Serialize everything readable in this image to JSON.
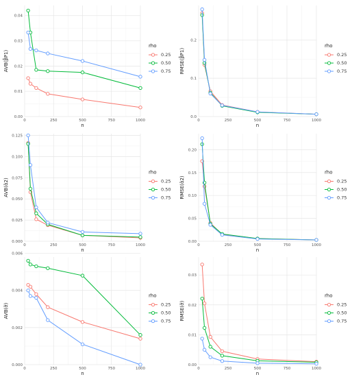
{
  "chart_data": [
    {
      "type": "line",
      "xlabel": "n",
      "ylabel": "AVB(β̂P1)",
      "x": [
        30,
        50,
        100,
        200,
        500,
        1000
      ],
      "xlim": [
        0,
        1000
      ],
      "ylim": [
        0,
        0.044
      ],
      "yticks": [
        "0.00",
        "0.01",
        "0.02",
        "0.03",
        "0.04"
      ],
      "ytick_values": [
        0,
        0.01,
        0.02,
        0.03,
        0.04
      ],
      "xticks": [
        "0",
        "250",
        "500",
        "750",
        "1000"
      ],
      "xtick_values": [
        0,
        250,
        500,
        750,
        1000
      ],
      "legend_title": "rho",
      "legend_position": "right",
      "grid": true,
      "series": [
        {
          "name": "0.25",
          "color": "#F8766D",
          "values": [
            0.0152,
            0.013,
            0.0113,
            0.009,
            0.0068,
            0.0036
          ]
        },
        {
          "name": "0.50",
          "color": "#00BA38",
          "values": [
            0.042,
            0.0333,
            0.0185,
            0.018,
            0.0175,
            0.0113
          ]
        },
        {
          "name": "0.75",
          "color": "#619CFF",
          "values": [
            0.0333,
            0.0268,
            0.0262,
            0.025,
            0.022,
            0.0158
          ]
        }
      ]
    },
    {
      "type": "line",
      "xlabel": "n",
      "ylabel": "RMSE(β̂P1)",
      "x": [
        30,
        50,
        100,
        200,
        500,
        1000
      ],
      "xlim": [
        0,
        1000
      ],
      "ylim": [
        0,
        0.29
      ],
      "yticks": [
        "0.0",
        "0.1",
        "0.2"
      ],
      "ytick_values": [
        0,
        0.1,
        0.2
      ],
      "xticks": [
        "0",
        "250",
        "500",
        "750",
        "1000"
      ],
      "xtick_values": [
        0,
        250,
        500,
        750,
        1000
      ],
      "legend_title": "rho",
      "legend_position": "right",
      "grid": true,
      "series": [
        {
          "name": "0.25",
          "color": "#F8766D",
          "values": [
            0.27,
            0.135,
            0.066,
            0.03,
            0.012,
            0.006
          ]
        },
        {
          "name": "0.50",
          "color": "#00BA38",
          "values": [
            0.265,
            0.14,
            0.062,
            0.028,
            0.011,
            0.006
          ]
        },
        {
          "name": "0.75",
          "color": "#619CFF",
          "values": [
            0.28,
            0.148,
            0.06,
            0.029,
            0.012,
            0.006
          ]
        }
      ]
    },
    {
      "type": "line",
      "xlabel": "n",
      "ylabel": "AVB(α̂2)",
      "x": [
        30,
        50,
        100,
        200,
        500,
        1000
      ],
      "xlim": [
        0,
        1000
      ],
      "ylim": [
        0,
        0.127
      ],
      "yticks": [
        "0.000",
        "0.025",
        "0.050",
        "0.075",
        "0.100",
        "0.125"
      ],
      "ytick_values": [
        0,
        0.025,
        0.05,
        0.075,
        0.1,
        0.125
      ],
      "xticks": [
        "0",
        "250",
        "500",
        "750",
        "1000"
      ],
      "xtick_values": [
        0,
        250,
        500,
        750,
        1000
      ],
      "legend_title": "rho",
      "legend_position": "right",
      "grid": true,
      "series": [
        {
          "name": "0.25",
          "color": "#F8766D",
          "values": [
            0.116,
            0.058,
            0.026,
            0.019,
            0.007,
            0.004
          ]
        },
        {
          "name": "0.50",
          "color": "#00BA38",
          "values": [
            0.115,
            0.062,
            0.033,
            0.02,
            0.007,
            0.005
          ]
        },
        {
          "name": "0.75",
          "color": "#619CFF",
          "values": [
            0.125,
            0.09,
            0.04,
            0.022,
            0.011,
            0.009
          ]
        }
      ]
    },
    {
      "type": "line",
      "xlabel": "n",
      "ylabel": "RMSE(α̂2)",
      "x": [
        30,
        50,
        100,
        200,
        500,
        1000
      ],
      "xlim": [
        0,
        1000
      ],
      "ylim": [
        0,
        0.235
      ],
      "yticks": [
        "0.00",
        "0.05",
        "0.10",
        "0.15",
        "0.20"
      ],
      "ytick_values": [
        0,
        0.05,
        0.1,
        0.15,
        0.2
      ],
      "xticks": [
        "0",
        "250",
        "500",
        "750",
        "1000"
      ],
      "xtick_values": [
        0,
        250,
        500,
        750,
        1000
      ],
      "legend_title": "rho",
      "legend_position": "right",
      "grid": true,
      "series": [
        {
          "name": "0.25",
          "color": "#F8766D",
          "values": [
            0.175,
            0.12,
            0.04,
            0.015,
            0.006,
            0.003
          ]
        },
        {
          "name": "0.50",
          "color": "#00BA38",
          "values": [
            0.212,
            0.128,
            0.038,
            0.016,
            0.006,
            0.003
          ]
        },
        {
          "name": "0.75",
          "color": "#619CFF",
          "values": [
            0.225,
            0.082,
            0.036,
            0.014,
            0.005,
            0.003
          ]
        }
      ]
    },
    {
      "type": "line",
      "xlabel": "n",
      "ylabel": "AVB(σ̂)",
      "x": [
        30,
        50,
        100,
        200,
        500,
        1000
      ],
      "xlim": [
        0,
        1000
      ],
      "ylim": [
        0,
        0.0058
      ],
      "yticks": [
        "0.000",
        "0.002",
        "0.004",
        "0.006"
      ],
      "ytick_values": [
        0,
        0.002,
        0.004,
        0.006
      ],
      "xticks": [
        "0",
        "250",
        "500",
        "750",
        "1000"
      ],
      "xtick_values": [
        0,
        250,
        500,
        750,
        1000
      ],
      "legend_title": "rho",
      "legend_position": "right",
      "grid": true,
      "series": [
        {
          "name": "0.25",
          "color": "#F8766D",
          "values": [
            0.0043,
            0.0042,
            0.0038,
            0.0031,
            0.0023,
            0.0014
          ]
        },
        {
          "name": "0.50",
          "color": "#00BA38",
          "values": [
            0.0056,
            0.0054,
            0.0053,
            0.0052,
            0.0048,
            0.0016
          ]
        },
        {
          "name": "0.75",
          "color": "#619CFF",
          "values": [
            0.004,
            0.0037,
            0.0036,
            0.0024,
            0.0011,
            0.0
          ]
        }
      ]
    },
    {
      "type": "line",
      "xlabel": "n",
      "ylabel": "RMSE(σ̂)",
      "x": [
        30,
        50,
        100,
        200,
        500,
        1000
      ],
      "xlim": [
        0,
        1000
      ],
      "ylim": [
        0,
        0.036
      ],
      "yticks": [
        "0.00",
        "0.01",
        "0.02",
        "0.03"
      ],
      "ytick_values": [
        0,
        0.01,
        0.02,
        0.03
      ],
      "xticks": [
        "0",
        "250",
        "500",
        "750",
        "1000"
      ],
      "xtick_values": [
        0,
        250,
        500,
        750,
        1000
      ],
      "legend_title": "rho",
      "legend_position": "right",
      "grid": true,
      "series": [
        {
          "name": "0.25",
          "color": "#F8766D",
          "values": [
            0.0335,
            0.0205,
            0.0093,
            0.0045,
            0.0019,
            0.001
          ]
        },
        {
          "name": "0.50",
          "color": "#00BA38",
          "values": [
            0.0221,
            0.0123,
            0.006,
            0.003,
            0.0013,
            0.0008
          ]
        },
        {
          "name": "0.75",
          "color": "#619CFF",
          "values": [
            0.0087,
            0.005,
            0.0025,
            0.0012,
            0.0005,
            0.0003
          ]
        }
      ]
    }
  ]
}
